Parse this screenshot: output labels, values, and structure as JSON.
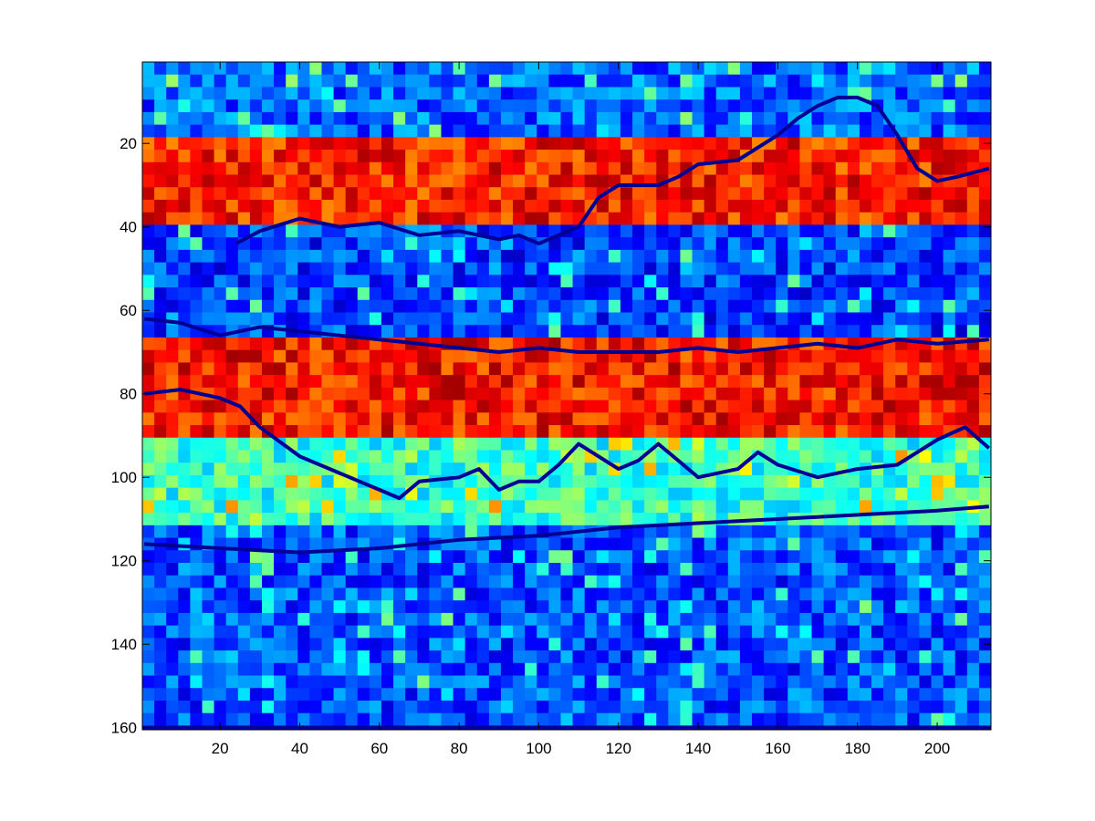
{
  "chart_data": {
    "type": "heatmap",
    "colormap": "jet",
    "x_range": [
      1,
      213
    ],
    "y_range": [
      1,
      160
    ],
    "y_direction": "down",
    "x_ticks": [
      20,
      40,
      60,
      80,
      100,
      120,
      140,
      160,
      180,
      200
    ],
    "y_ticks": [
      20,
      40,
      60,
      80,
      100,
      120,
      140,
      160
    ],
    "x_tick_labels": [
      "20",
      "40",
      "60",
      "80",
      "100",
      "120",
      "140",
      "160",
      "180",
      "200"
    ],
    "y_tick_labels": [
      "20",
      "40",
      "60",
      "80",
      "100",
      "120",
      "140",
      "160"
    ],
    "grid": false,
    "value_range": [
      0,
      1
    ],
    "regions": [
      {
        "y_from": 1,
        "y_to": 18,
        "level": 0.22
      },
      {
        "y_from": 18,
        "y_to": 40,
        "level": 0.85
      },
      {
        "y_from": 40,
        "y_to": 67,
        "level": 0.18
      },
      {
        "y_from": 67,
        "y_to": 92,
        "level": 0.86
      },
      {
        "y_from": 92,
        "y_to": 112,
        "level": 0.42
      },
      {
        "y_from": 112,
        "y_to": 160,
        "level": 0.2
      }
    ],
    "contours": [
      {
        "name": "upper-boundary",
        "x": [
          24,
          30,
          40,
          50,
          60,
          70,
          80,
          90,
          95,
          100,
          110,
          115,
          120,
          130,
          135,
          140,
          150,
          160,
          165,
          170,
          175,
          180,
          185,
          190,
          195,
          200,
          205,
          213
        ],
        "y": [
          44,
          41,
          38,
          40,
          39,
          42,
          41,
          43,
          42,
          44,
          40,
          33,
          30,
          30,
          28,
          25,
          24,
          18,
          14,
          11,
          9,
          9,
          11,
          18,
          26,
          29,
          28,
          26
        ]
      },
      {
        "name": "middle-boundary",
        "x": [
          1,
          10,
          20,
          30,
          40,
          50,
          60,
          70,
          80,
          90,
          100,
          110,
          120,
          130,
          140,
          150,
          160,
          170,
          180,
          190,
          200,
          213
        ],
        "y": [
          62,
          63,
          66,
          64,
          65,
          66,
          67,
          68,
          69,
          70,
          69,
          70,
          70,
          70,
          69,
          70,
          69,
          68,
          69,
          67,
          68,
          67
        ]
      },
      {
        "name": "lower-boundary",
        "x": [
          1,
          10,
          20,
          25,
          30,
          40,
          50,
          55,
          60,
          65,
          70,
          80,
          85,
          90,
          95,
          100,
          105,
          110,
          115,
          120,
          125,
          130,
          135,
          140,
          150,
          155,
          160,
          170,
          180,
          190,
          200,
          207,
          213
        ],
        "y": [
          80,
          79,
          81,
          83,
          88,
          95,
          99,
          101,
          103,
          105,
          101,
          100,
          98,
          103,
          101,
          101,
          97,
          92,
          95,
          98,
          96,
          92,
          96,
          100,
          98,
          94,
          97,
          100,
          98,
          97,
          91,
          88,
          93
        ]
      },
      {
        "name": "bottom-band-edge",
        "x": [
          1,
          20,
          40,
          60,
          80,
          100,
          120,
          140,
          160,
          180,
          200,
          213
        ],
        "y": [
          116,
          117,
          118,
          117,
          115,
          114,
          112,
          111,
          110,
          109,
          108,
          107
        ]
      }
    ]
  }
}
